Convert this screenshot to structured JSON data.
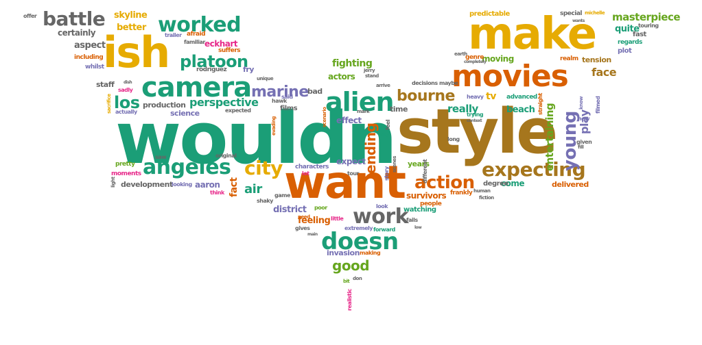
{
  "colors": {
    "green": "#1b9e77",
    "orange": "#d95f02",
    "purple": "#7570b3",
    "pink": "#e7298a",
    "lime": "#66a61e",
    "yellow": "#e6ab02",
    "brown": "#a6761d",
    "grey": "#666666"
  },
  "words": [
    {
      "text": "wouldn",
      "color": "green"
    },
    {
      "text": "style",
      "color": "brown"
    },
    {
      "text": "want",
      "color": "orange"
    },
    {
      "text": "make",
      "color": "yellow"
    },
    {
      "text": "ish",
      "color": "yellow"
    },
    {
      "text": "movies",
      "color": "orange"
    },
    {
      "text": "camera",
      "color": "green"
    },
    {
      "text": "alien",
      "color": "green"
    },
    {
      "text": "angeles",
      "color": "green"
    },
    {
      "text": "expecting",
      "color": "brown"
    },
    {
      "text": "worked",
      "color": "green"
    },
    {
      "text": "battle",
      "color": "grey"
    },
    {
      "text": "platoon",
      "color": "green"
    },
    {
      "text": "doesn",
      "color": "green"
    },
    {
      "text": "action",
      "color": "orange"
    },
    {
      "text": "city",
      "color": "yellow"
    },
    {
      "text": "work",
      "color": "grey"
    },
    {
      "text": "bourne",
      "color": "brown"
    },
    {
      "text": "young",
      "color": "purple"
    },
    {
      "text": "marine",
      "color": "purple"
    },
    {
      "text": "perspective",
      "color": "green"
    },
    {
      "text": "los",
      "color": "green"
    },
    {
      "text": "good",
      "color": "lime"
    },
    {
      "text": "fighting",
      "color": "lime"
    },
    {
      "text": "masterpiece",
      "color": "lime"
    },
    {
      "text": "entertaining",
      "color": "lime"
    },
    {
      "text": "really",
      "color": "green"
    },
    {
      "text": "air",
      "color": "green"
    },
    {
      "text": "survivors",
      "color": "orange"
    },
    {
      "text": "district",
      "color": "purple"
    },
    {
      "text": "feeling",
      "color": "orange"
    },
    {
      "text": "ending",
      "color": "orange"
    },
    {
      "text": "aaron",
      "color": "purple"
    },
    {
      "text": "skyline",
      "color": "yellow"
    },
    {
      "text": "better",
      "color": "yellow"
    },
    {
      "text": "actors",
      "color": "lime"
    },
    {
      "text": "certainly",
      "color": "grey"
    },
    {
      "text": "aspect",
      "color": "grey"
    },
    {
      "text": "eckhart",
      "color": "pink"
    },
    {
      "text": "face",
      "color": "brown"
    },
    {
      "text": "beach",
      "color": "green"
    },
    {
      "text": "years",
      "color": "lime"
    },
    {
      "text": "fact",
      "color": "orange"
    },
    {
      "text": "play",
      "color": "purple"
    },
    {
      "text": "effect",
      "color": "purple"
    },
    {
      "text": "expect",
      "color": "purple"
    },
    {
      "text": "moving",
      "color": "lime"
    },
    {
      "text": "quite",
      "color": "green"
    },
    {
      "text": "tension",
      "color": "brown"
    },
    {
      "text": "development",
      "color": "grey"
    },
    {
      "text": "production",
      "color": "grey"
    },
    {
      "text": "science",
      "color": "purple"
    },
    {
      "text": "staff",
      "color": "grey"
    },
    {
      "text": "bad",
      "color": "grey"
    },
    {
      "text": "time",
      "color": "grey"
    },
    {
      "text": "come",
      "color": "green"
    },
    {
      "text": "delivered",
      "color": "orange"
    },
    {
      "text": "invasion",
      "color": "purple"
    },
    {
      "text": "watching",
      "color": "green"
    },
    {
      "text": "people",
      "color": "orange"
    },
    {
      "text": "degree",
      "color": "grey"
    },
    {
      "text": "frankly",
      "color": "orange"
    },
    {
      "text": "films",
      "color": "grey"
    },
    {
      "text": "predictable",
      "color": "yellow"
    },
    {
      "text": "special",
      "color": "grey"
    },
    {
      "text": "fast",
      "color": "grey"
    },
    {
      "text": "regards",
      "color": "green"
    },
    {
      "text": "plot",
      "color": "purple"
    },
    {
      "text": "genre",
      "color": "orange"
    },
    {
      "text": "realm",
      "color": "orange"
    },
    {
      "text": "advanced",
      "color": "green"
    },
    {
      "text": "tv",
      "color": "yellow"
    },
    {
      "text": "heavy",
      "color": "purple"
    },
    {
      "text": "suffers",
      "color": "orange"
    },
    {
      "text": "fry",
      "color": "purple"
    },
    {
      "text": "rodriguez",
      "color": "grey"
    },
    {
      "text": "afraid",
      "color": "orange"
    },
    {
      "text": "trailer",
      "color": "purple"
    },
    {
      "text": "familiar",
      "color": "grey"
    },
    {
      "text": "including",
      "color": "orange"
    },
    {
      "text": "whilst",
      "color": "purple"
    },
    {
      "text": "offer",
      "color": "grey"
    },
    {
      "text": "sadly",
      "color": "pink"
    },
    {
      "text": "actually",
      "color": "purple"
    },
    {
      "text": "expected",
      "color": "grey"
    },
    {
      "text": "hawk",
      "color": "grey"
    },
    {
      "text": "said",
      "color": "purple"
    },
    {
      "text": "pretty",
      "color": "lime"
    },
    {
      "text": "moments",
      "color": "pink"
    },
    {
      "text": "looking",
      "color": "purple"
    },
    {
      "text": "think",
      "color": "pink"
    },
    {
      "text": "original",
      "color": "grey"
    },
    {
      "text": "saw",
      "color": "grey"
    },
    {
      "text": "shaky",
      "color": "grey"
    },
    {
      "text": "game",
      "color": "grey"
    },
    {
      "text": "characters",
      "color": "purple"
    },
    {
      "text": "lot",
      "color": "pink"
    },
    {
      "text": "tour",
      "color": "grey"
    },
    {
      "text": "story",
      "color": "purple"
    },
    {
      "text": "look",
      "color": "purple"
    },
    {
      "text": "fails",
      "color": "grey"
    },
    {
      "text": "forward",
      "color": "green"
    },
    {
      "text": "extremely",
      "color": "purple"
    },
    {
      "text": "little",
      "color": "pink"
    },
    {
      "text": "gives",
      "color": "grey"
    },
    {
      "text": "need",
      "color": "orange"
    },
    {
      "text": "poor",
      "color": "lime"
    },
    {
      "text": "making",
      "color": "orange"
    },
    {
      "text": "don",
      "color": "grey"
    },
    {
      "text": "bit",
      "color": "lime"
    },
    {
      "text": "realistic",
      "color": "pink"
    },
    {
      "text": "different",
      "color": "grey"
    },
    {
      "text": "human",
      "color": "grey"
    },
    {
      "text": "fiction",
      "color": "grey"
    },
    {
      "text": "long",
      "color": "grey"
    },
    {
      "text": "given",
      "color": "grey"
    },
    {
      "text": "filmed",
      "color": "purple"
    },
    {
      "text": "decisions",
      "color": "grey"
    },
    {
      "text": "maybe",
      "color": "grey"
    },
    {
      "text": "arrive",
      "color": "grey"
    },
    {
      "text": "jerry",
      "color": "grey"
    },
    {
      "text": "unique",
      "color": "grey"
    },
    {
      "text": "michelle",
      "color": "yellow"
    },
    {
      "text": "touring",
      "color": "grey"
    },
    {
      "text": "completely",
      "color": "grey"
    },
    {
      "text": "earth",
      "color": "grey"
    },
    {
      "text": "trying",
      "color": "green"
    },
    {
      "text": "context",
      "color": "grey"
    },
    {
      "text": "straight",
      "color": "orange"
    },
    {
      "text": "know",
      "color": "purple"
    },
    {
      "text": "new",
      "color": "purple"
    },
    {
      "text": "fill",
      "color": "grey"
    },
    {
      "text": "day",
      "color": "green"
    },
    {
      "text": "feel",
      "color": "grey"
    },
    {
      "text": "scenes",
      "color": "grey"
    },
    {
      "text": "scenario",
      "color": "orange"
    },
    {
      "text": "evading",
      "color": "orange"
    },
    {
      "text": "stand",
      "color": "grey"
    },
    {
      "text": "light",
      "color": "grey"
    },
    {
      "text": "sacrifice",
      "color": "yellow"
    },
    {
      "text": "mark",
      "color": "grey"
    },
    {
      "text": "main",
      "color": "grey"
    },
    {
      "text": "low",
      "color": "grey"
    },
    {
      "text": "wants",
      "color": "grey"
    },
    {
      "text": "dish",
      "color": "grey"
    }
  ]
}
